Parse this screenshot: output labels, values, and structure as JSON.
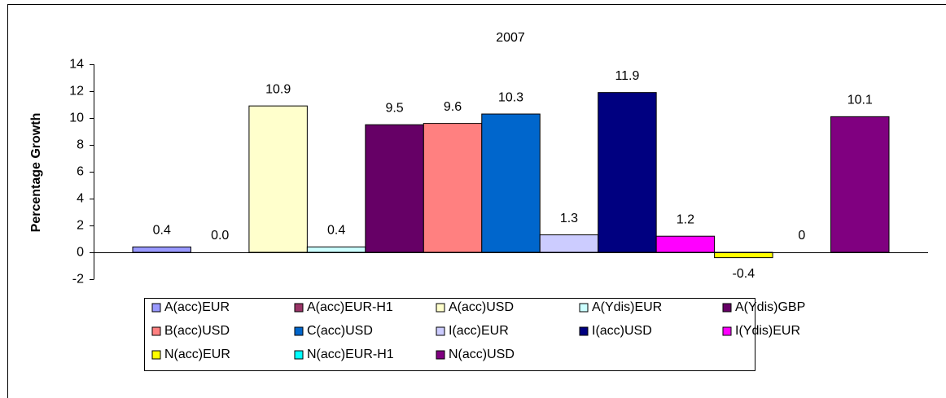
{
  "chart_data": {
    "type": "bar",
    "title": "2007",
    "y_label": "Percentage Growth",
    "ylim": [
      -2,
      14
    ],
    "yticks": [
      -2,
      0,
      2,
      4,
      6,
      8,
      10,
      12,
      14
    ],
    "grid": false,
    "legend": "bottom",
    "series": [
      {
        "name": "A(acc)EUR",
        "color": "#9999ff",
        "values": [
          0.4
        ]
      },
      {
        "name": "A(acc)EUR-H1",
        "color": "#993366",
        "values": [
          0
        ],
        "value_labels": [
          "0.0"
        ]
      },
      {
        "name": "A(acc)USD",
        "color": "#ffffcc",
        "values": [
          10.9
        ]
      },
      {
        "name": "A(Ydis)EUR",
        "color": "#ccffff",
        "values": [
          0.4
        ]
      },
      {
        "name": "A(Ydis)GBP",
        "color": "#660066",
        "values": [
          9.5
        ]
      },
      {
        "name": "B(acc)USD",
        "color": "#ff8080",
        "values": [
          9.6
        ]
      },
      {
        "name": "C(acc)USD",
        "color": "#0066cc",
        "values": [
          10.3
        ]
      },
      {
        "name": "I(acc)EUR",
        "color": "#ccccff",
        "values": [
          1.3
        ]
      },
      {
        "name": "I(acc)USD",
        "color": "#000080",
        "values": [
          11.9
        ]
      },
      {
        "name": "I(Ydis)EUR",
        "color": "#ff00ff",
        "values": [
          1.2
        ]
      },
      {
        "name": "N(acc)EUR",
        "color": "#ffff00",
        "values": [
          -0.4
        ]
      },
      {
        "name": "N(acc)EUR-H1",
        "color": "#00ffff",
        "values": [
          0
        ]
      },
      {
        "name": "N(acc)USD",
        "color": "#800080",
        "values": [
          10.1
        ]
      }
    ]
  }
}
